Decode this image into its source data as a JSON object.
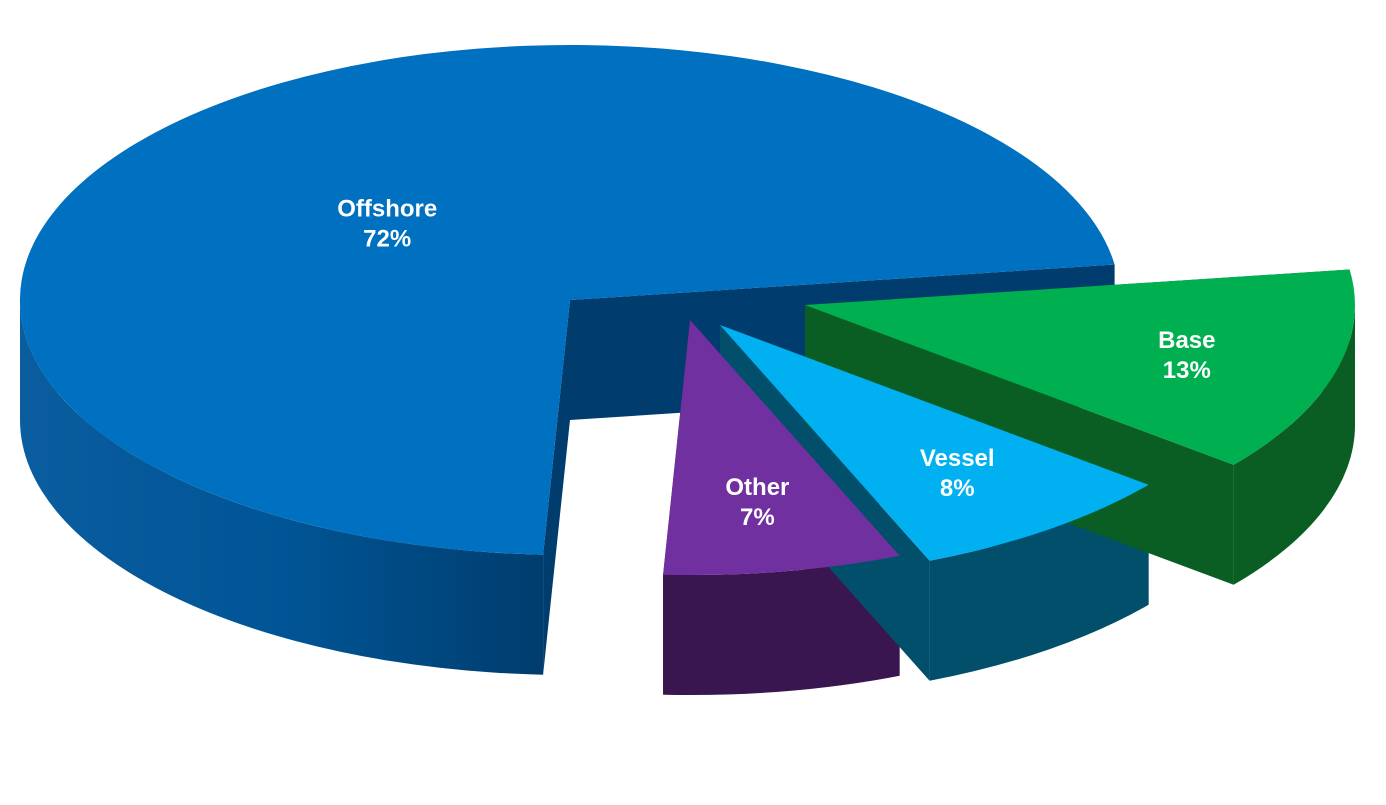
{
  "chart_data": {
    "type": "pie",
    "title": "",
    "labels": [
      "Offshore",
      "Base",
      "Vessel",
      "Other"
    ],
    "values": [
      72,
      13,
      8,
      7
    ],
    "value_labels": [
      "72%",
      "13%",
      "8%",
      "7%"
    ],
    "colors": {
      "Offshore": "#0070C0",
      "Base": "#00B050",
      "Vessel": "#00B0F0",
      "Other": "#7030A0"
    },
    "side_colors": {
      "Offshore": "#003D6E",
      "Base": "#0A5E23",
      "Vessel": "#024F6C",
      "Other": "#3A1650"
    },
    "style": "3d-exploded",
    "legend": "none"
  }
}
